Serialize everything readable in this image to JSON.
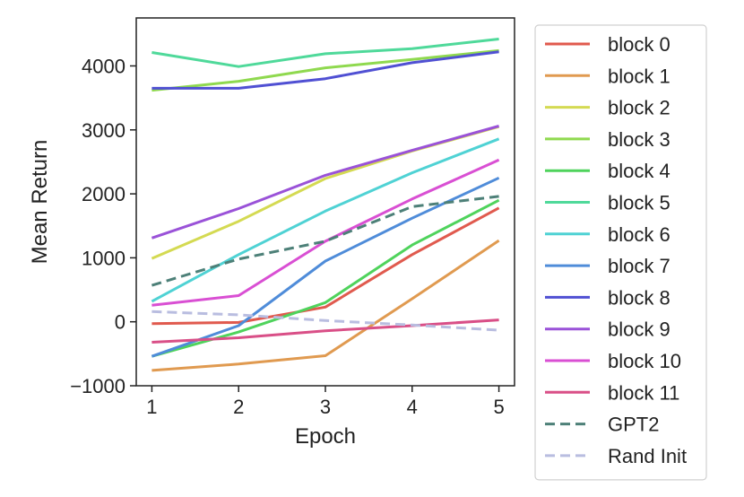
{
  "chart_data": {
    "type": "line",
    "xlabel": "Epoch",
    "ylabel": "Mean Return",
    "x": [
      1,
      2,
      3,
      4,
      5
    ],
    "xlim": [
      0.82,
      5.18
    ],
    "ylim": [
      -1000,
      4750
    ],
    "xticks": [
      "1",
      "2",
      "3",
      "4",
      "5"
    ],
    "yticks": [
      "−1000",
      "0",
      "1000",
      "2000",
      "3000",
      "4000"
    ],
    "ytick_values": [
      -1000,
      0,
      1000,
      2000,
      3000,
      4000
    ],
    "grid": false,
    "legend_position": "outside-right",
    "series": [
      {
        "name": "block 0",
        "color": "#e05a4e",
        "style": "solid",
        "values": [
          -30,
          -10,
          230,
          1050,
          1780
        ]
      },
      {
        "name": "block 1",
        "color": "#e09a50",
        "style": "solid",
        "values": [
          -760,
          -660,
          -530,
          360,
          1270
        ]
      },
      {
        "name": "block 2",
        "color": "#d4da52",
        "style": "solid",
        "values": [
          990,
          1570,
          2240,
          2670,
          3050
        ]
      },
      {
        "name": "block 3",
        "color": "#8fd94f",
        "style": "solid",
        "values": [
          3620,
          3760,
          3970,
          4100,
          4240
        ]
      },
      {
        "name": "block 4",
        "color": "#4fd35c",
        "style": "solid",
        "values": [
          -540,
          -160,
          300,
          1200,
          1900
        ]
      },
      {
        "name": "block 5",
        "color": "#4fd99a",
        "style": "solid",
        "values": [
          4210,
          3990,
          4190,
          4270,
          4420
        ]
      },
      {
        "name": "block 6",
        "color": "#4fd2d4",
        "style": "solid",
        "values": [
          320,
          1050,
          1730,
          2330,
          2860
        ]
      },
      {
        "name": "block 7",
        "color": "#4f8cd9",
        "style": "solid",
        "values": [
          -540,
          -60,
          950,
          1620,
          2250
        ]
      },
      {
        "name": "block 8",
        "color": "#5050d3",
        "style": "solid",
        "values": [
          3650,
          3650,
          3800,
          4050,
          4220
        ]
      },
      {
        "name": "block 9",
        "color": "#9a52d8",
        "style": "solid",
        "values": [
          1310,
          1770,
          2290,
          2680,
          3060
        ]
      },
      {
        "name": "block 10",
        "color": "#d94fd3",
        "style": "solid",
        "values": [
          260,
          410,
          1260,
          1920,
          2530
        ]
      },
      {
        "name": "block 11",
        "color": "#d94f87",
        "style": "solid",
        "values": [
          -320,
          -250,
          -140,
          -60,
          30
        ]
      },
      {
        "name": "GPT2",
        "color": "#4d8078",
        "style": "dashed",
        "values": [
          570,
          980,
          1260,
          1800,
          1960
        ]
      },
      {
        "name": "Rand Init",
        "color": "#b9bde0",
        "style": "dashed",
        "values": [
          160,
          110,
          20,
          -50,
          -130
        ]
      }
    ]
  }
}
